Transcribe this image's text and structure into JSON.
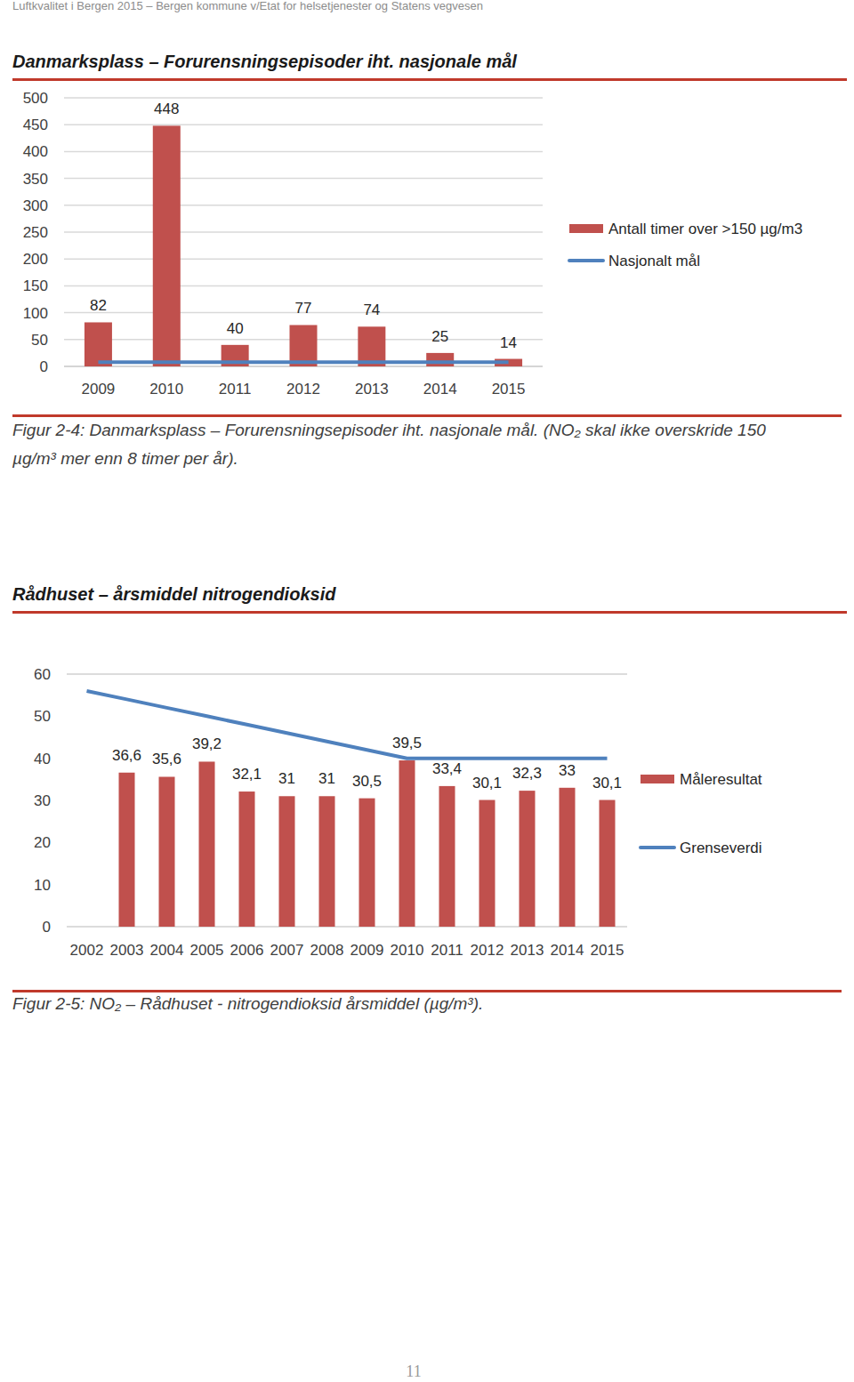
{
  "page": {
    "header": "Luftkvalitet i Bergen 2015 – Bergen kommune v/Etat for helsetjenester og Statens vegvesen",
    "page_number": "11"
  },
  "chart_data": [
    {
      "type": "bar",
      "title": "Danmarksplass – Forurensningsepisoder iht. nasjonale mål",
      "caption": "Figur 2-4: Danmarksplass – Forurensningsepisoder iht. nasjonale mål. (NO₂ skal ikke overskride 150 µg/m³ mer enn 8 timer per år).",
      "categories": [
        "2009",
        "2010",
        "2011",
        "2012",
        "2013",
        "2014",
        "2015"
      ],
      "series": [
        {
          "name": "Antall timer over >150 µg/m3",
          "type": "bar",
          "color": "#c0504d",
          "values": [
            82,
            448,
            40,
            77,
            74,
            25,
            14
          ]
        },
        {
          "name": "Nasjonalt mål",
          "type": "line",
          "color": "#4f81bd",
          "values": [
            8,
            8,
            8,
            8,
            8,
            8,
            8
          ]
        }
      ],
      "ylim": [
        0,
        500
      ],
      "yticks": [
        0,
        50,
        100,
        150,
        200,
        250,
        300,
        350,
        400,
        450,
        500
      ],
      "grid": true,
      "legend": "right",
      "data_labels": true
    },
    {
      "type": "bar",
      "title": "Rådhuset – årsmiddel nitrogendioksid",
      "caption": "Figur 2-5: NO₂ – Rådhuset - nitrogendioksid årsmiddel (µg/m³).",
      "categories": [
        "2002",
        "2003",
        "2004",
        "2005",
        "2006",
        "2007",
        "2008",
        "2009",
        "2010",
        "2011",
        "2012",
        "2013",
        "2014",
        "2015"
      ],
      "series": [
        {
          "name": "Måleresultat",
          "type": "bar",
          "color": "#c0504d",
          "values": [
            null,
            36.6,
            35.6,
            39.2,
            32.1,
            31,
            31,
            30.5,
            39.5,
            33.4,
            30.1,
            32.3,
            33,
            30.1
          ],
          "value_labels": [
            null,
            "36,6",
            "35,6",
            "39,2",
            "32,1",
            "31",
            "31",
            "30,5",
            "39,5",
            "33,4",
            "30,1",
            "32,3",
            "33",
            "30,1"
          ]
        },
        {
          "name": "Grenseverdi",
          "type": "line",
          "color": "#4f81bd",
          "values": [
            56,
            54,
            52,
            50,
            48,
            46,
            44,
            42,
            40,
            40,
            40,
            40,
            40,
            40
          ]
        }
      ],
      "ylim": [
        0,
        60
      ],
      "yticks": [
        0,
        10,
        20,
        30,
        40,
        50,
        60
      ],
      "grid": false,
      "legend": "right",
      "data_labels": true
    }
  ]
}
